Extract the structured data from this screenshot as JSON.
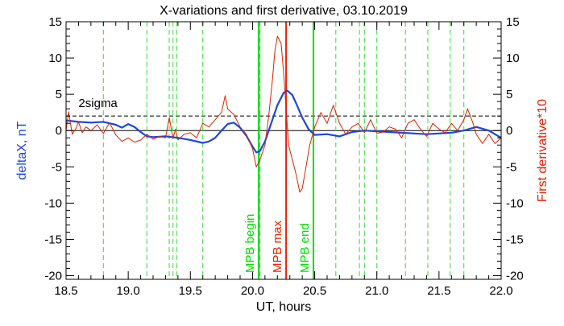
{
  "chart_data": {
    "type": "line",
    "title": "X-variations and first derivative, 03.10.2019",
    "xlabel": "UT, hours",
    "ylabel_left": "deltaX, nT",
    "ylabel_right": "First derivative*10",
    "xlim": [
      18.5,
      22.0
    ],
    "ylim": [
      -20.5,
      15
    ],
    "xticks": [
      "18.5",
      "19.0",
      "19.5",
      "20.0",
      "20.5",
      "21.0",
      "21.5",
      "22.0"
    ],
    "xtick_values": [
      18.5,
      19.0,
      19.5,
      20.0,
      20.5,
      21.0,
      21.5,
      22.0
    ],
    "yticks": [
      "15",
      "10",
      "5",
      "0",
      "-5",
      "-10",
      "-15",
      "-20"
    ],
    "ytick_values": [
      15,
      10,
      5,
      0,
      -5,
      -10,
      -15,
      -20
    ],
    "threshold": {
      "label": "2sigma",
      "value": 2.0
    },
    "zero_line": 0,
    "vlines_green_dashed": [
      18.8,
      19.15,
      19.33,
      19.36,
      19.39,
      19.6,
      20.06,
      20.67,
      20.86,
      20.9,
      21.0,
      21.23,
      21.41,
      21.59,
      21.7
    ],
    "markers": [
      {
        "label": "MPB begin",
        "x": 20.05,
        "color": "#00dd00"
      },
      {
        "label": "MPB max",
        "x": 20.27,
        "color": "#ee2200"
      },
      {
        "label": "MPB end",
        "x": 20.49,
        "color": "#00dd00"
      }
    ],
    "series": [
      {
        "color": "#1a46e0",
        "x": [
          18.5,
          18.55,
          18.6,
          18.7,
          18.8,
          18.9,
          18.95,
          19.0,
          19.05,
          19.1,
          19.15,
          19.2,
          19.3,
          19.4,
          19.5,
          19.6,
          19.65,
          19.7,
          19.75,
          19.8,
          19.85,
          19.9,
          19.95,
          20.0,
          20.03,
          20.06,
          20.1,
          20.15,
          20.2,
          20.25,
          20.28,
          20.32,
          20.35,
          20.4,
          20.45,
          20.5,
          20.6,
          20.7,
          20.8,
          20.9,
          21.0,
          21.1,
          21.2,
          21.3,
          21.4,
          21.5,
          21.6,
          21.7,
          21.8,
          21.9,
          22.0
        ],
        "values": [
          1.4,
          1.3,
          1.2,
          1.1,
          1.2,
          0.8,
          0.4,
          0.9,
          0.5,
          -0.2,
          -0.8,
          -0.9,
          -0.8,
          -1.0,
          -1.3,
          -1.7,
          -1.5,
          -1.0,
          0.0,
          0.9,
          1.1,
          0.4,
          -0.7,
          -2.2,
          -3.0,
          -2.8,
          -1.5,
          1.0,
          3.5,
          5.2,
          5.5,
          4.9,
          3.8,
          1.8,
          0.2,
          -0.6,
          -0.5,
          -0.8,
          -0.2,
          0.0,
          -0.1,
          -0.2,
          -0.3,
          -0.4,
          -0.5,
          -0.4,
          -0.3,
          0.0,
          0.5,
          0.0,
          -1.0
        ]
      },
      {
        "color": "#dd2200",
        "x": [
          18.5,
          18.52,
          18.55,
          18.58,
          18.6,
          18.63,
          18.66,
          18.7,
          18.75,
          18.8,
          18.85,
          18.9,
          18.95,
          19.0,
          19.05,
          19.1,
          19.15,
          19.2,
          19.25,
          19.3,
          19.33,
          19.36,
          19.38,
          19.4,
          19.45,
          19.5,
          19.55,
          19.6,
          19.65,
          19.7,
          19.75,
          19.78,
          19.8,
          19.85,
          19.9,
          19.95,
          20.0,
          20.03,
          20.06,
          20.1,
          20.13,
          20.16,
          20.18,
          20.2,
          20.23,
          20.25,
          20.27,
          20.29,
          20.32,
          20.35,
          20.38,
          20.4,
          20.43,
          20.46,
          20.5,
          20.55,
          20.6,
          20.65,
          20.7,
          20.75,
          20.8,
          20.85,
          20.9,
          20.95,
          21.0,
          21.05,
          21.1,
          21.15,
          21.2,
          21.25,
          21.3,
          21.35,
          21.4,
          21.45,
          21.5,
          21.55,
          21.6,
          21.65,
          21.7,
          21.73,
          21.77,
          21.8,
          21.85,
          21.9,
          21.95,
          22.0
        ],
        "values": [
          0.0,
          2.6,
          -0.5,
          0.3,
          1.2,
          -0.3,
          0.5,
          0.0,
          0.8,
          -0.4,
          1.1,
          -0.6,
          -1.5,
          -1.0,
          -1.6,
          -1.3,
          -0.5,
          -1.2,
          -0.8,
          -1.0,
          1.8,
          -1.1,
          0.2,
          -1.3,
          -0.5,
          -0.3,
          -1.0,
          1.0,
          0.5,
          1.5,
          2.5,
          4.8,
          3.0,
          2.2,
          0.5,
          -0.5,
          -2.5,
          -5.0,
          -4.0,
          -2.0,
          2.0,
          7.0,
          11.0,
          13.0,
          12.0,
          8.0,
          3.0,
          -2.0,
          -4.0,
          -6.0,
          -8.5,
          -8.0,
          -5.0,
          -2.0,
          0.5,
          2.5,
          1.0,
          3.5,
          1.0,
          -0.5,
          0.5,
          1.0,
          -0.3,
          1.5,
          -0.4,
          -0.2,
          0.5,
          0.2,
          -1.0,
          1.0,
          1.5,
          0.2,
          -0.8,
          1.0,
          0.2,
          -0.3,
          1.0,
          0.0,
          1.5,
          3.0,
          1.2,
          -0.5,
          -1.8,
          -0.5,
          -1.8,
          -1.0
        ]
      }
    ]
  }
}
